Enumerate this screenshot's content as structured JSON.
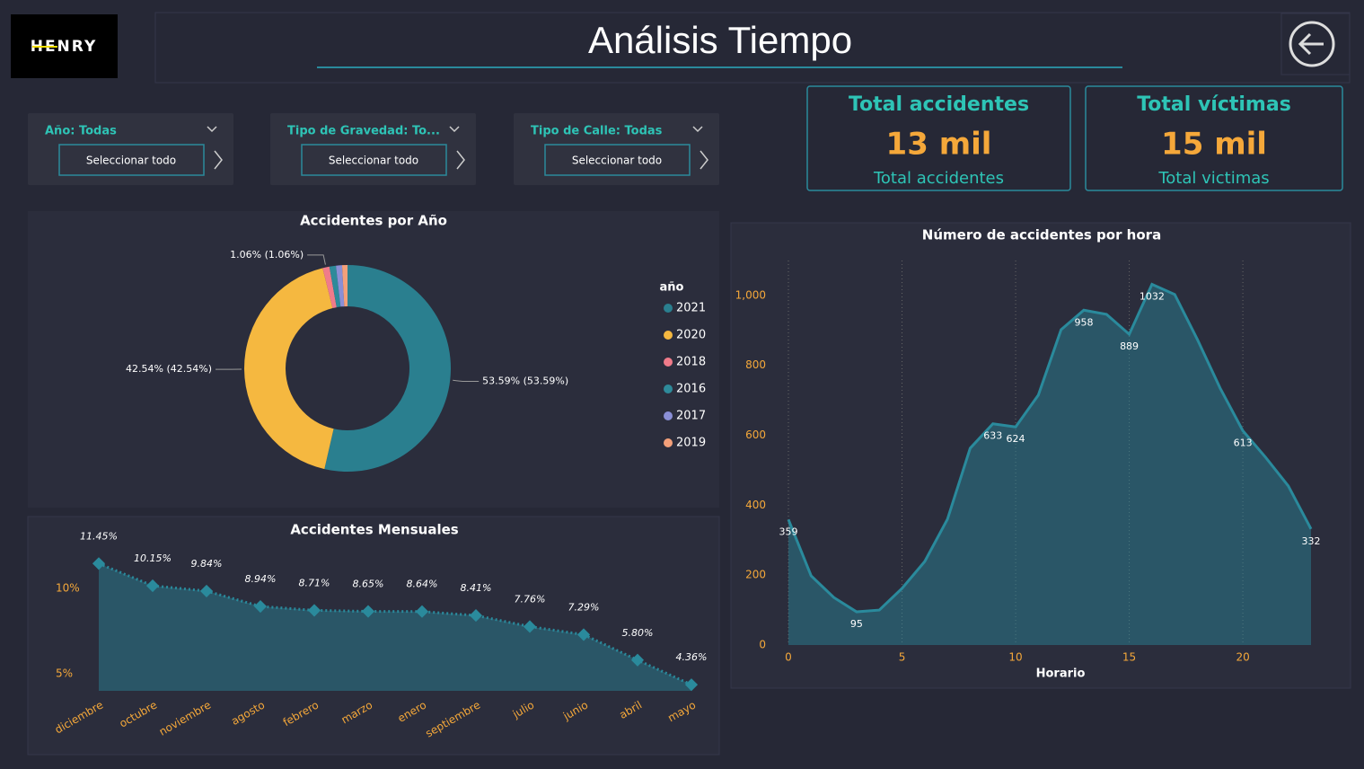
{
  "header": {
    "logo": "HENRY",
    "title": "Análisis Tiempo"
  },
  "filters": [
    {
      "label": "Año: Todas",
      "button": "Seleccionar todo"
    },
    {
      "label": "Tipo de Gravedad: To...",
      "button": "Seleccionar todo"
    },
    {
      "label": "Tipo de Calle: Todas",
      "button": "Seleccionar todo"
    }
  ],
  "kpis": [
    {
      "title": "Total accidentes",
      "value": "13 mil",
      "subtitle": "Total accidentes"
    },
    {
      "title": "Total víctimas",
      "value": "15 mil",
      "subtitle": "Total victimas"
    }
  ],
  "chart_data": [
    {
      "type": "donut",
      "title": "Accidentes por Año",
      "legend_title": "año",
      "categories": [
        "2021",
        "2020",
        "2018",
        "2016",
        "2017",
        "2019"
      ],
      "values": [
        53.59,
        42.54,
        1.06,
        1.02,
        0.95,
        0.84
      ],
      "value_labels": [
        "53.59% (53.59%)",
        "42.54% (42.54%)",
        "1.06% (1.06%)",
        null,
        null,
        null
      ],
      "colors": [
        "#2a7f8f",
        "#f5b840",
        "#f07b8a",
        "#2e8a9a",
        "#8a8fd6",
        "#f4a07a"
      ]
    },
    {
      "type": "area",
      "title": "Accidentes Mensuales",
      "categories": [
        "diciembre",
        "octubre",
        "noviembre",
        "agosto",
        "febrero",
        "marzo",
        "enero",
        "septiembre",
        "julio",
        "junio",
        "abril",
        "mayo"
      ],
      "values": [
        11.45,
        10.15,
        9.84,
        8.94,
        8.71,
        8.65,
        8.64,
        8.41,
        7.76,
        7.29,
        5.8,
        4.36
      ],
      "value_labels": [
        "11.45%",
        "10.15%",
        "9.84%",
        "8.94%",
        "8.71%",
        "8.65%",
        "8.64%",
        "8.41%",
        "7.76%",
        "7.29%",
        "5.80%",
        "4.36%"
      ],
      "color": "#2a8a9c",
      "line_style": "dotted",
      "markers": true,
      "ylim": [
        4,
        12.2
      ],
      "yticks": [
        {
          "value": 5,
          "label": "5%"
        },
        {
          "value": 10,
          "label": "10%"
        }
      ]
    },
    {
      "type": "area",
      "title": "Número de accidentes por hora",
      "xlabel": "Horario",
      "x": [
        0,
        1,
        2,
        3,
        4,
        5,
        6,
        7,
        8,
        9,
        10,
        11,
        12,
        13,
        14,
        15,
        16,
        17,
        18,
        19,
        20,
        21,
        22,
        23
      ],
      "values": [
        359,
        198,
        136,
        95,
        100,
        162,
        239,
        360,
        563,
        633,
        624,
        715,
        902,
        958,
        946,
        889,
        1032,
        1003,
        874,
        735,
        613,
        537,
        455,
        332
      ],
      "value_labels": [
        "359",
        null,
        null,
        "95",
        null,
        null,
        null,
        null,
        null,
        "633",
        "624",
        null,
        null,
        "958",
        null,
        "889",
        "1032",
        null,
        null,
        null,
        "613",
        null,
        null,
        "332"
      ],
      "color": "#2a8a9c",
      "line_style": "solid",
      "markers": false,
      "xgrid": true,
      "xlim": [
        0,
        23
      ],
      "xticks": [
        0,
        5,
        10,
        15,
        20
      ],
      "ylim": [
        0,
        1100
      ],
      "yticks": [
        0,
        200,
        400,
        600,
        800,
        {
          "value": 1000,
          "label": "1,000"
        }
      ]
    }
  ]
}
